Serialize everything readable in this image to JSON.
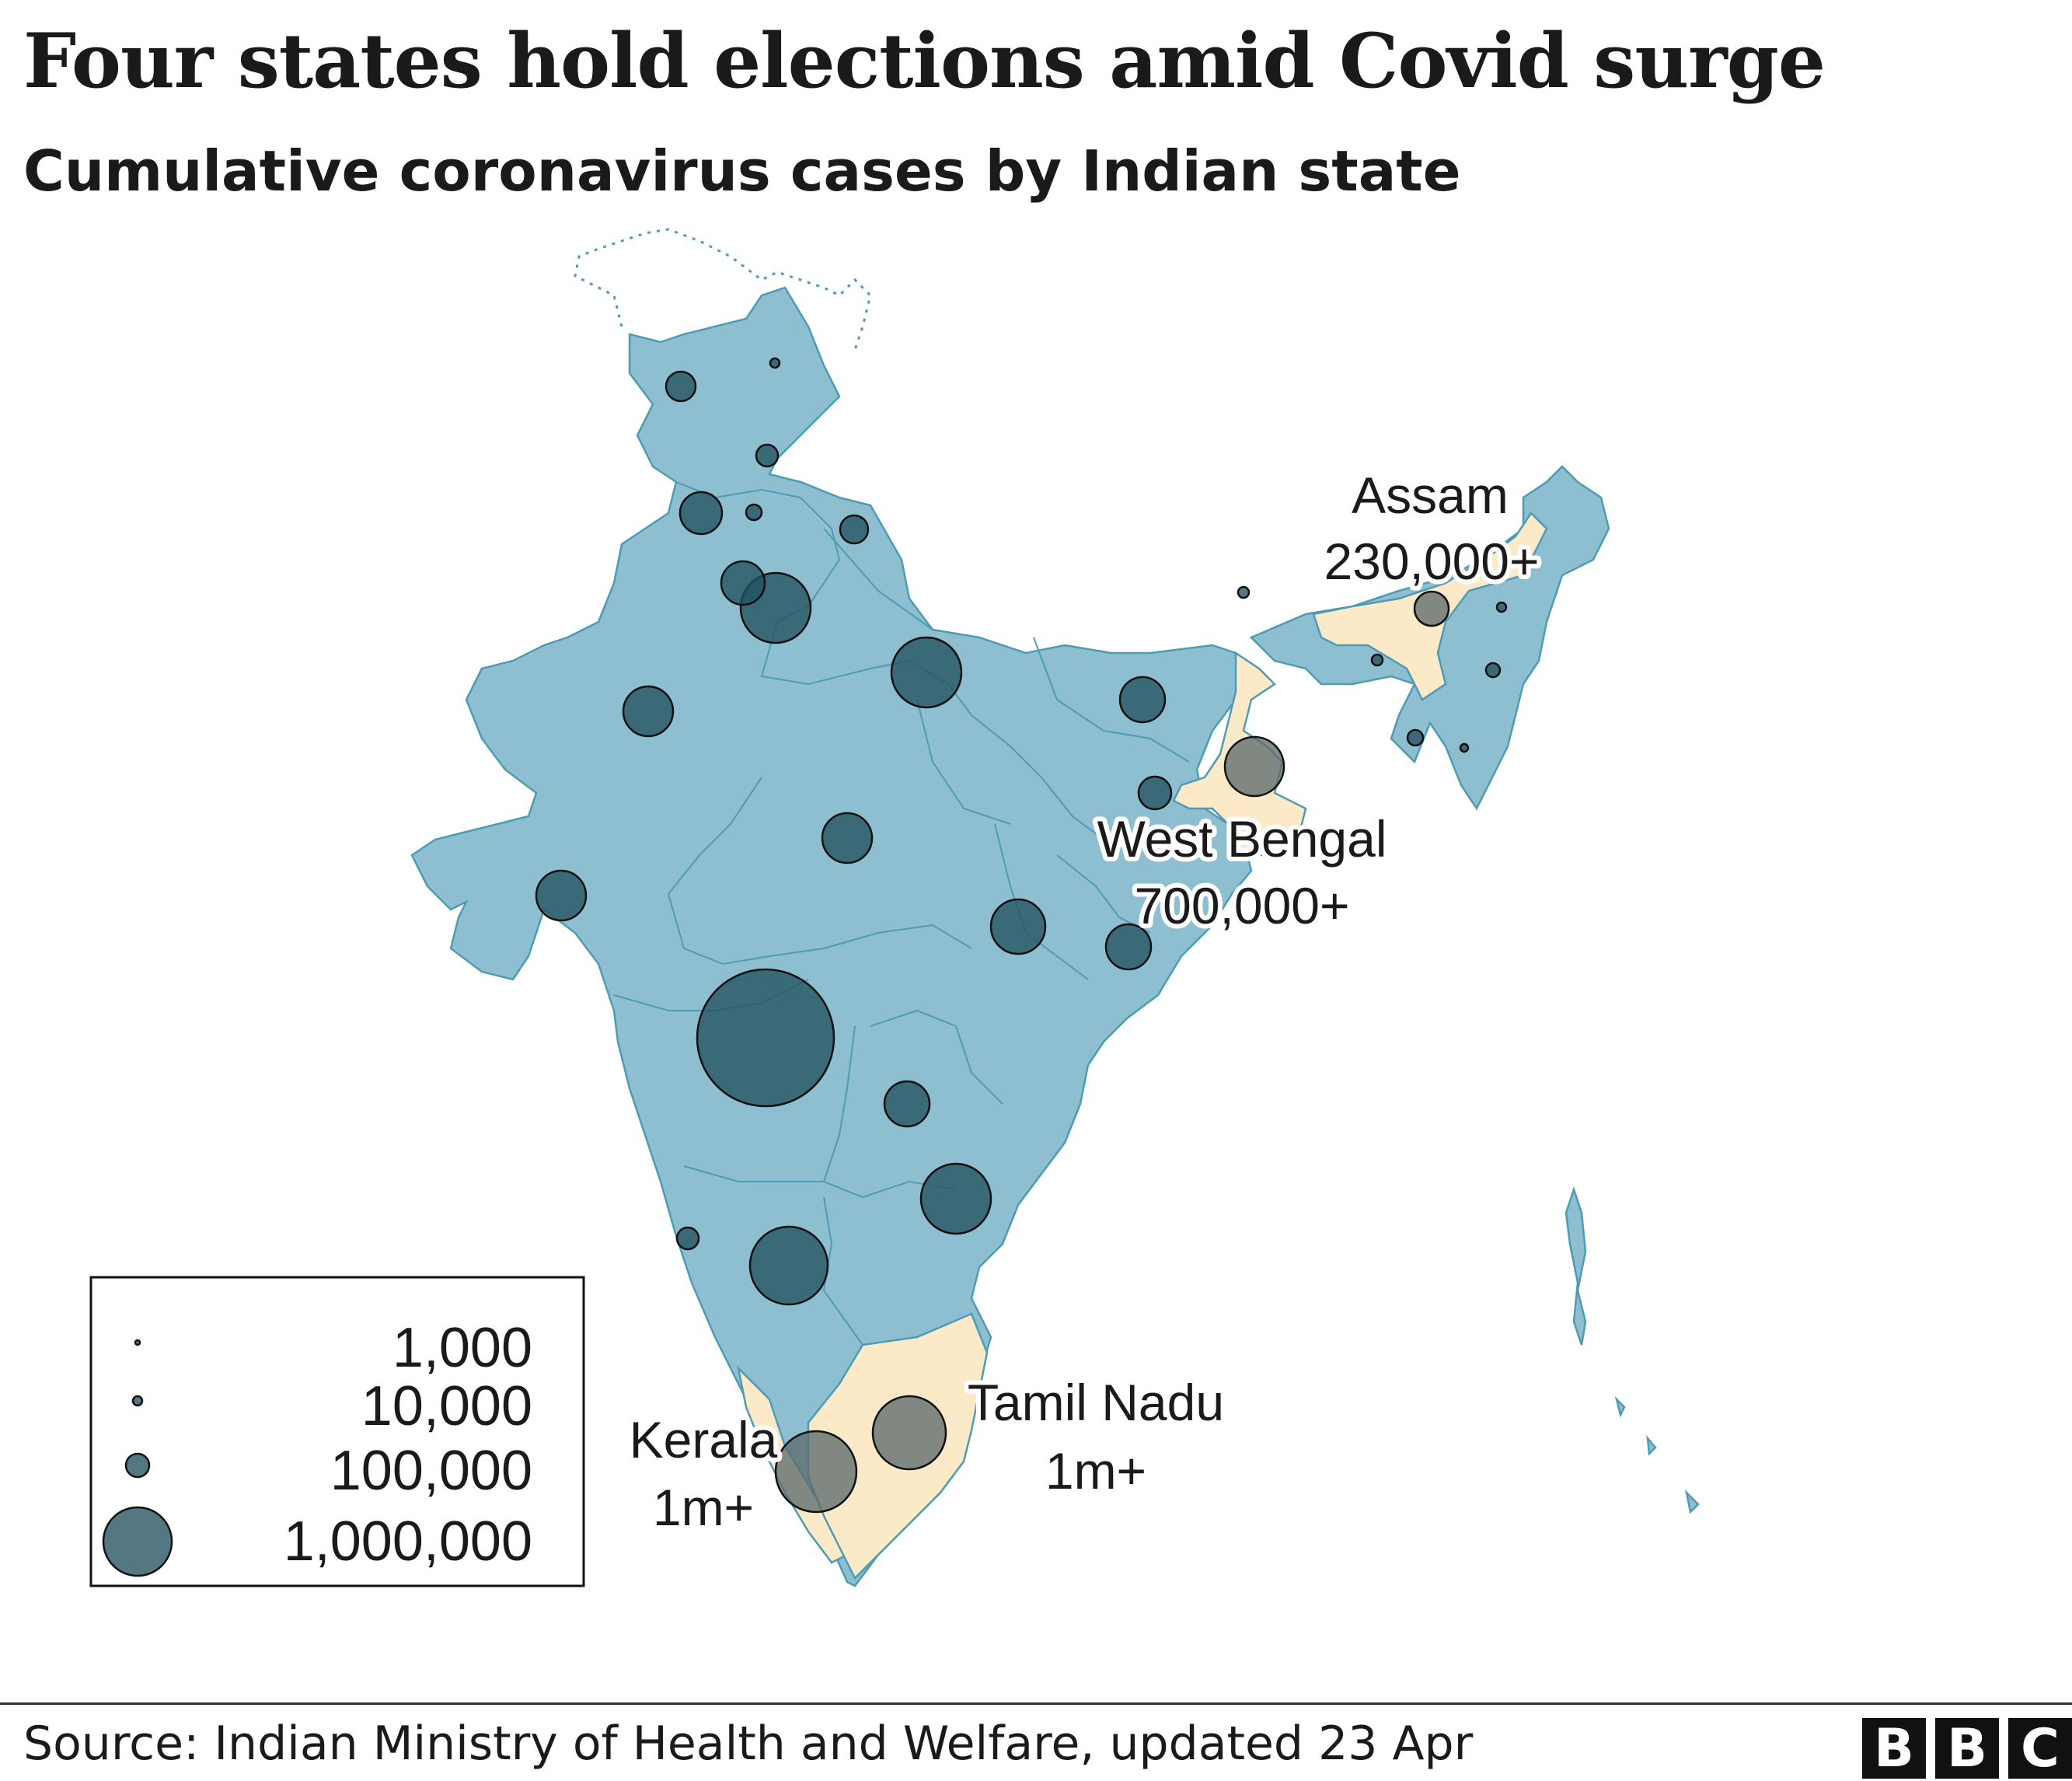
{
  "title": "Four states hold elections amid Covid surge",
  "subtitle": "Cumulative coronavirus cases by Indian state",
  "source": "Source: Indian Ministry of Health and Welfare, updated 23 Apr",
  "logo": [
    "B",
    "B",
    "C"
  ],
  "colors": {
    "land": "#8ebfd0",
    "highlight": "#fbe9c8",
    "border": "#4d9bb4",
    "bubble": "#23525f"
  },
  "map": {
    "highlighted_states": [
      {
        "name": "Assam",
        "value": "230,000+"
      },
      {
        "name": "West Bengal",
        "value": "700,000+"
      },
      {
        "name": "Kerala",
        "value": "1m+"
      },
      {
        "name": "Tamil Nadu",
        "value": "1m+"
      }
    ]
  },
  "legend": {
    "items": [
      {
        "label": "1,000",
        "value": 1000
      },
      {
        "label": "10,000",
        "value": 10000
      },
      {
        "label": "100,000",
        "value": 100000
      },
      {
        "label": "1,000,000",
        "value": 1000000
      }
    ]
  }
}
